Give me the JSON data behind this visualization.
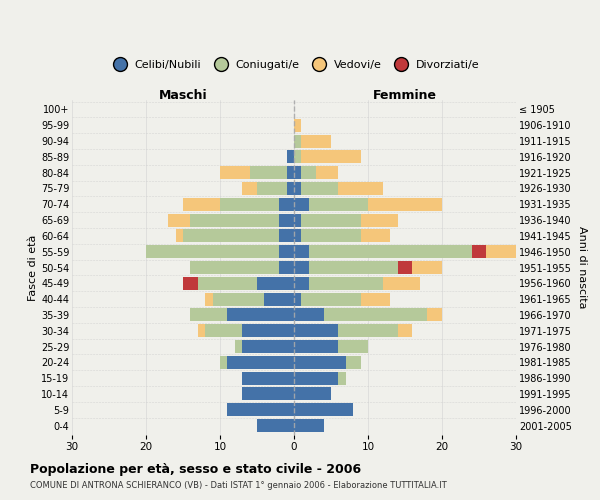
{
  "age_groups": [
    "0-4",
    "5-9",
    "10-14",
    "15-19",
    "20-24",
    "25-29",
    "30-34",
    "35-39",
    "40-44",
    "45-49",
    "50-54",
    "55-59",
    "60-64",
    "65-69",
    "70-74",
    "75-79",
    "80-84",
    "85-89",
    "90-94",
    "95-99",
    "100+"
  ],
  "birth_years": [
    "2001-2005",
    "1996-2000",
    "1991-1995",
    "1986-1990",
    "1981-1985",
    "1976-1980",
    "1971-1975",
    "1966-1970",
    "1961-1965",
    "1956-1960",
    "1951-1955",
    "1946-1950",
    "1941-1945",
    "1936-1940",
    "1931-1935",
    "1926-1930",
    "1921-1925",
    "1916-1920",
    "1911-1915",
    "1906-1910",
    "≤ 1905"
  ],
  "males": {
    "celibi": [
      5,
      9,
      7,
      7,
      9,
      7,
      7,
      9,
      4,
      5,
      2,
      2,
      2,
      2,
      2,
      1,
      1,
      1,
      0,
      0,
      0
    ],
    "coniugati": [
      0,
      0,
      0,
      0,
      1,
      1,
      5,
      5,
      7,
      8,
      12,
      18,
      13,
      12,
      8,
      4,
      5,
      0,
      0,
      0,
      0
    ],
    "vedovi": [
      0,
      0,
      0,
      0,
      0,
      0,
      1,
      0,
      1,
      0,
      0,
      0,
      1,
      3,
      5,
      2,
      4,
      0,
      0,
      0,
      0
    ],
    "divorziati": [
      0,
      0,
      0,
      0,
      0,
      0,
      0,
      0,
      0,
      2,
      0,
      0,
      0,
      0,
      0,
      0,
      0,
      0,
      0,
      0,
      0
    ]
  },
  "females": {
    "nubili": [
      4,
      8,
      5,
      6,
      7,
      6,
      6,
      4,
      1,
      2,
      2,
      2,
      1,
      1,
      2,
      1,
      1,
      0,
      0,
      0,
      0
    ],
    "coniugate": [
      0,
      0,
      0,
      1,
      2,
      4,
      8,
      14,
      8,
      10,
      12,
      22,
      8,
      8,
      8,
      5,
      2,
      1,
      1,
      0,
      0
    ],
    "vedove": [
      0,
      0,
      0,
      0,
      0,
      0,
      2,
      2,
      4,
      5,
      4,
      4,
      4,
      5,
      10,
      6,
      3,
      8,
      4,
      1,
      0
    ],
    "divorziate": [
      0,
      0,
      0,
      0,
      0,
      0,
      0,
      0,
      0,
      0,
      2,
      2,
      0,
      0,
      0,
      0,
      0,
      0,
      0,
      0,
      0
    ]
  },
  "colors": {
    "celibi_nubili": "#4472a8",
    "coniugati": "#b5c99a",
    "vedovi": "#f5c67a",
    "divorziati": "#c0393b"
  },
  "xlim": 30,
  "title": "Popolazione per età, sesso e stato civile - 2006",
  "subtitle": "COMUNE DI ANTRONA SCHIERANCO (VB) - Dati ISTAT 1° gennaio 2006 - Elaborazione TUTTITALIA.IT",
  "legend_labels": [
    "Celibi/Nubili",
    "Coniugati/e",
    "Vedovi/e",
    "Divorziati/e"
  ],
  "xlabel_left": "Maschi",
  "xlabel_right": "Femmine",
  "ylabel_left": "Fasce di età",
  "ylabel_right": "Anni di nascita",
  "background_color": "#f0f0eb",
  "bar_height": 0.82
}
